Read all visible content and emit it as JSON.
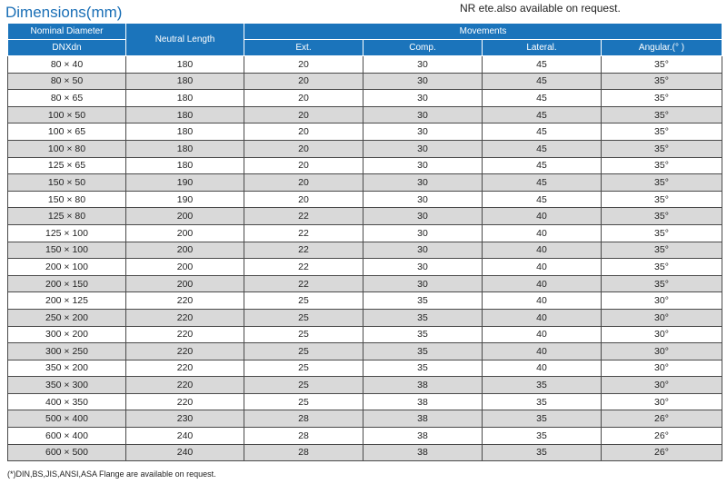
{
  "title": "Dimensions(mm)",
  "note": "NR ete.also available on request.",
  "footnote": "(*)DIN,BS,JIS,ANSI,ASA Flange are available on request.",
  "header": {
    "nominal_diameter": "Nominal Diameter",
    "dnxdn": "DNXdn",
    "neutral_length": "Neutral Length",
    "movements": "Movements",
    "ext": "Ext.",
    "comp": "Comp.",
    "lateral": "Lateral.",
    "angular": "Angular.(°  )"
  },
  "rows": [
    [
      "80 × 40",
      "180",
      "20",
      "30",
      "45",
      "35°"
    ],
    [
      "80 × 50",
      "180",
      "20",
      "30",
      "45",
      "35°"
    ],
    [
      "80 × 65",
      "180",
      "20",
      "30",
      "45",
      "35°"
    ],
    [
      "100 × 50",
      "180",
      "20",
      "30",
      "45",
      "35°"
    ],
    [
      "100 × 65",
      "180",
      "20",
      "30",
      "45",
      "35°"
    ],
    [
      "100 × 80",
      "180",
      "20",
      "30",
      "45",
      "35°"
    ],
    [
      "125 × 65",
      "180",
      "20",
      "30",
      "45",
      "35°"
    ],
    [
      "150 × 50",
      "190",
      "20",
      "30",
      "45",
      "35°"
    ],
    [
      "150 × 80",
      "190",
      "20",
      "30",
      "45",
      "35°"
    ],
    [
      "125 × 80",
      "200",
      "22",
      "30",
      "40",
      "35°"
    ],
    [
      "125 × 100",
      "200",
      "22",
      "30",
      "40",
      "35°"
    ],
    [
      "150 × 100",
      "200",
      "22",
      "30",
      "40",
      "35°"
    ],
    [
      "200 × 100",
      "200",
      "22",
      "30",
      "40",
      "35°"
    ],
    [
      "200 × 150",
      "200",
      "22",
      "30",
      "40",
      "35°"
    ],
    [
      "200 × 125",
      "220",
      "25",
      "35",
      "40",
      "30°"
    ],
    [
      "250 × 200",
      "220",
      "25",
      "35",
      "40",
      "30°"
    ],
    [
      "300 × 200",
      "220",
      "25",
      "35",
      "40",
      "30°"
    ],
    [
      "300 × 250",
      "220",
      "25",
      "35",
      "40",
      "30°"
    ],
    [
      "350 × 200",
      "220",
      "25",
      "35",
      "40",
      "30°"
    ],
    [
      "350 × 300",
      "220",
      "25",
      "38",
      "35",
      "30°"
    ],
    [
      "400 × 350",
      "220",
      "25",
      "38",
      "35",
      "30°"
    ],
    [
      "500 × 400",
      "230",
      "28",
      "38",
      "35",
      "26°"
    ],
    [
      "600 × 400",
      "240",
      "28",
      "38",
      "35",
      "26°"
    ],
    [
      "600 × 500",
      "240",
      "28",
      "38",
      "35",
      "26°"
    ]
  ]
}
